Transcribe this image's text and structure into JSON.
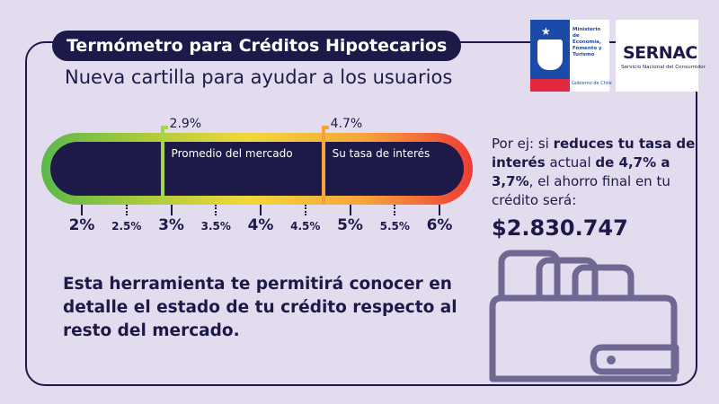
{
  "header": {
    "title": "Termómetro para Créditos Hipotecarios",
    "subtitle": "Nueva cartilla para ayudar a los usuarios"
  },
  "logos": {
    "gov_text": "Ministerio de Economía, Fomento y Turismo",
    "gov_footer": "Gobierno de Chile",
    "sernac_name": "SERNAC",
    "sernac_sub": "Servicio Nacional del Consumidor"
  },
  "thermometer": {
    "min": 2,
    "max": 6,
    "market": {
      "value": 2.9,
      "label": "2.9%",
      "caption": "Promedio del mercado",
      "color": "#a6d44a"
    },
    "user": {
      "value": 4.7,
      "label": "4.7%",
      "caption": "Su tasa de interés",
      "color": "#f6a43a"
    },
    "ticks": [
      {
        "v": 2,
        "label": "2%",
        "major": true
      },
      {
        "v": 2.5,
        "label": "2.5%",
        "major": false
      },
      {
        "v": 3,
        "label": "3%",
        "major": true
      },
      {
        "v": 3.5,
        "label": "3.5%",
        "major": false
      },
      {
        "v": 4,
        "label": "4%",
        "major": true
      },
      {
        "v": 4.5,
        "label": "4.5%",
        "major": false
      },
      {
        "v": 5,
        "label": "5%",
        "major": true
      },
      {
        "v": 5.5,
        "label": "5.5%",
        "major": false
      },
      {
        "v": 6,
        "label": "6%",
        "major": true
      }
    ]
  },
  "example": {
    "p1": "Por ej: si ",
    "p2": "reduces tu tasa de interés",
    "p3": " actual ",
    "p4": "de 4,7% a 3,7%",
    "p5": ", el ahorro final en tu crédito será:",
    "amount": "$2.830.747"
  },
  "bottom_text": "Esta herramienta te permitirá conocer en detalle el estado de tu crédito respecto al resto del mercado.",
  "colors": {
    "navy": "#1d1a4a",
    "background": "#e2dcee",
    "wallet": "#6e6892"
  }
}
